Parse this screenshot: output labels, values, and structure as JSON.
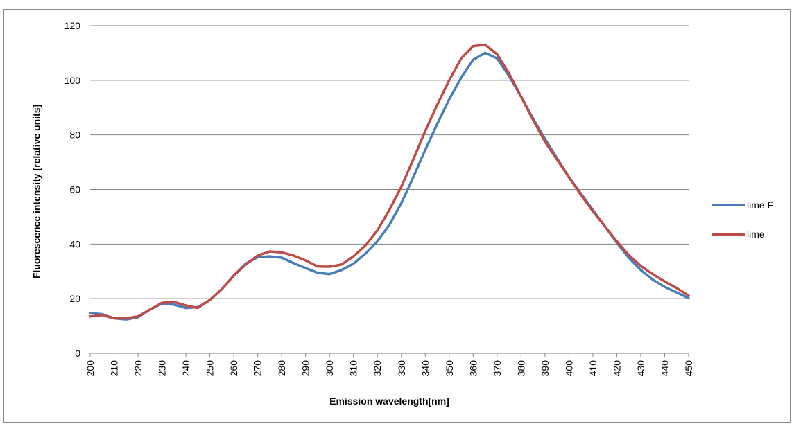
{
  "chart_data": {
    "type": "line",
    "title": "",
    "xlabel": "Emission wavelength[nm]",
    "ylabel": "Fluorescence intensity [relative units]",
    "xlim": [
      200,
      450
    ],
    "ylim": [
      0,
      120
    ],
    "ytick_step": 20,
    "xtick_step": 10,
    "grid": "horizontal",
    "legend_position": "right",
    "x": [
      200,
      205,
      210,
      215,
      220,
      225,
      230,
      235,
      240,
      245,
      250,
      255,
      260,
      265,
      270,
      275,
      280,
      285,
      290,
      295,
      300,
      305,
      310,
      315,
      320,
      325,
      330,
      335,
      340,
      345,
      350,
      355,
      360,
      365,
      370,
      375,
      380,
      385,
      390,
      395,
      400,
      405,
      410,
      415,
      420,
      425,
      430,
      435,
      440,
      445,
      450
    ],
    "series": [
      {
        "name": "lime F",
        "color": "#4a7ebb",
        "values": [
          14.8,
          14.3,
          12.8,
          12.4,
          13.2,
          16.0,
          18.2,
          17.8,
          16.6,
          16.9,
          19.5,
          23.5,
          28.5,
          32.8,
          35.2,
          35.5,
          35.0,
          33.0,
          31.2,
          29.5,
          29.0,
          30.5,
          32.8,
          36.5,
          41.0,
          47.0,
          55.0,
          64.5,
          74.5,
          84.0,
          93.0,
          101.0,
          107.5,
          110.0,
          108.0,
          101.5,
          94.0,
          86.0,
          78.5,
          71.5,
          64.5,
          58.5,
          52.5,
          46.5,
          40.5,
          35.0,
          30.5,
          27.0,
          24.3,
          22.3,
          20.2
        ]
      },
      {
        "name": "lime",
        "color": "#be4b48",
        "values": [
          13.5,
          14.0,
          12.8,
          12.8,
          13.5,
          16.0,
          18.5,
          18.8,
          17.5,
          16.6,
          19.5,
          23.5,
          28.5,
          32.5,
          35.8,
          37.3,
          37.0,
          35.8,
          34.0,
          31.8,
          31.7,
          32.5,
          35.5,
          39.5,
          45.0,
          52.5,
          61.0,
          71.0,
          81.5,
          91.0,
          100.0,
          108.0,
          112.5,
          113.0,
          109.5,
          102.5,
          94.0,
          85.5,
          77.5,
          71.0,
          64.5,
          58.0,
          52.0,
          46.5,
          41.0,
          36.0,
          32.0,
          29.0,
          26.3,
          23.9,
          21.1
        ]
      }
    ]
  }
}
